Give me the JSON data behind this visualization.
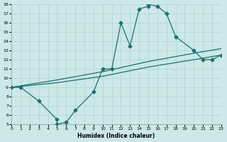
{
  "xlabel": "Humidex (Indice chaleur)",
  "xlim": [
    0,
    23
  ],
  "ylim": [
    5,
    18
  ],
  "xticks": [
    0,
    1,
    2,
    3,
    4,
    5,
    6,
    7,
    8,
    9,
    10,
    11,
    12,
    13,
    14,
    15,
    16,
    17,
    18,
    19,
    20,
    21,
    22,
    23
  ],
  "yticks": [
    5,
    6,
    7,
    8,
    9,
    10,
    11,
    12,
    13,
    14,
    15,
    16,
    17,
    18
  ],
  "bg_color": "#cce8e8",
  "grid_color": "#b0d4d4",
  "line_color": "#1e7070",
  "line1_x": [
    0,
    1,
    3,
    5,
    5,
    6,
    7,
    9,
    10,
    11,
    12,
    13,
    14,
    15,
    15,
    16,
    17,
    18,
    20,
    21,
    22,
    23
  ],
  "line1_y": [
    9,
    9,
    7.5,
    5.5,
    5,
    5.2,
    6.5,
    8.5,
    11,
    11,
    16,
    13.5,
    17.5,
    17.8,
    18,
    17.8,
    17,
    14.5,
    13,
    12,
    12,
    12.5
  ],
  "line2_x": [
    0,
    5,
    10,
    15,
    20,
    23
  ],
  "line2_y": [
    9,
    9.5,
    10.2,
    11.2,
    12.0,
    12.5
  ],
  "line3_x": [
    0,
    5,
    10,
    15,
    20,
    23
  ],
  "line3_y": [
    9,
    9.8,
    10.7,
    11.8,
    12.7,
    13.2
  ],
  "markersize": 2.5,
  "linewidth": 0.9
}
